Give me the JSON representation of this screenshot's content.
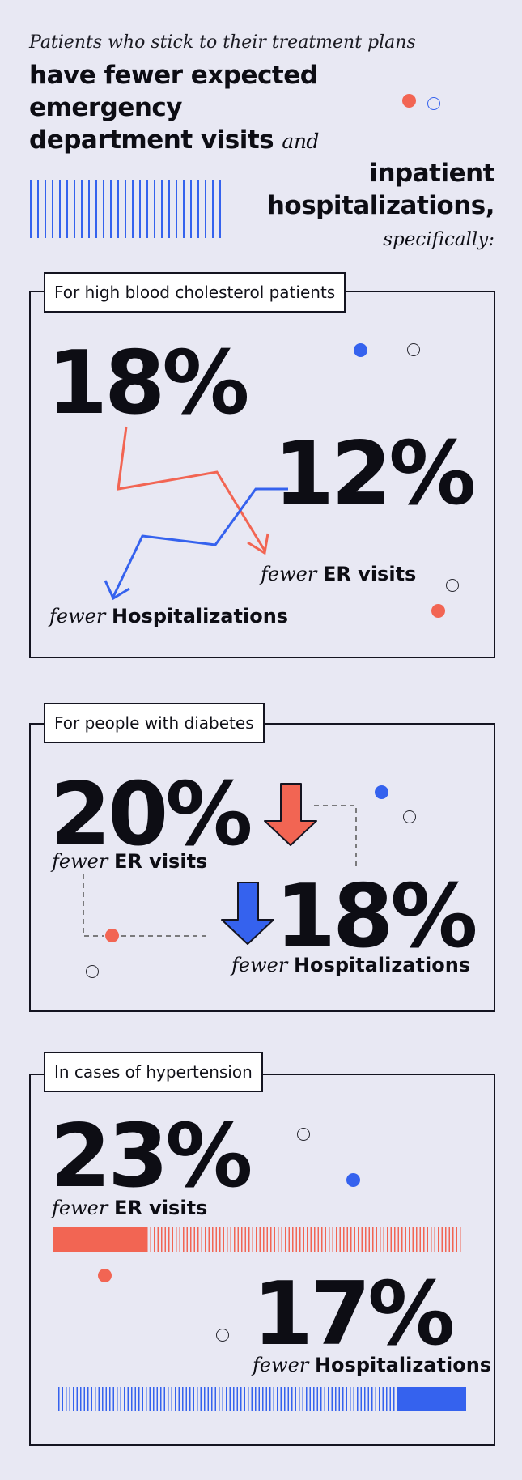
{
  "header": {
    "intro": "Patients who stick to their treatment plans",
    "line1": "have fewer expected",
    "line2": "emergency",
    "line3": "department visits",
    "and": "and",
    "line4": "inpatient",
    "line5": "hospitalizations,",
    "specifically": "specifically:"
  },
  "sections": [
    {
      "tag": "For high blood cholesterol patients",
      "stat1": "18%",
      "stat2": "12%",
      "caption1": {
        "prefix": "fewer",
        "label": "ER visits"
      },
      "caption2": {
        "prefix": "fewer",
        "label": "Hospitalizations"
      }
    },
    {
      "tag": "For people with diabetes",
      "stat1": "20%",
      "stat2": "18%",
      "caption1": {
        "prefix": "fewer",
        "label": "ER visits"
      },
      "caption2": {
        "prefix": "fewer",
        "label": "Hospitalizations"
      }
    },
    {
      "tag": "In cases of hypertension",
      "stat1": "23%",
      "stat2": "17%",
      "caption1": {
        "prefix": "fewer",
        "label": "ER visits"
      },
      "caption2": {
        "prefix": "fewer",
        "label": "Hospitalizations"
      },
      "bar1_fraction": 0.23,
      "bar2_fraction": 0.17
    }
  ],
  "colors": {
    "red": "#f26553",
    "blue": "#3562ee",
    "ink": "#0d0d14",
    "background": "#e8e8f3"
  }
}
